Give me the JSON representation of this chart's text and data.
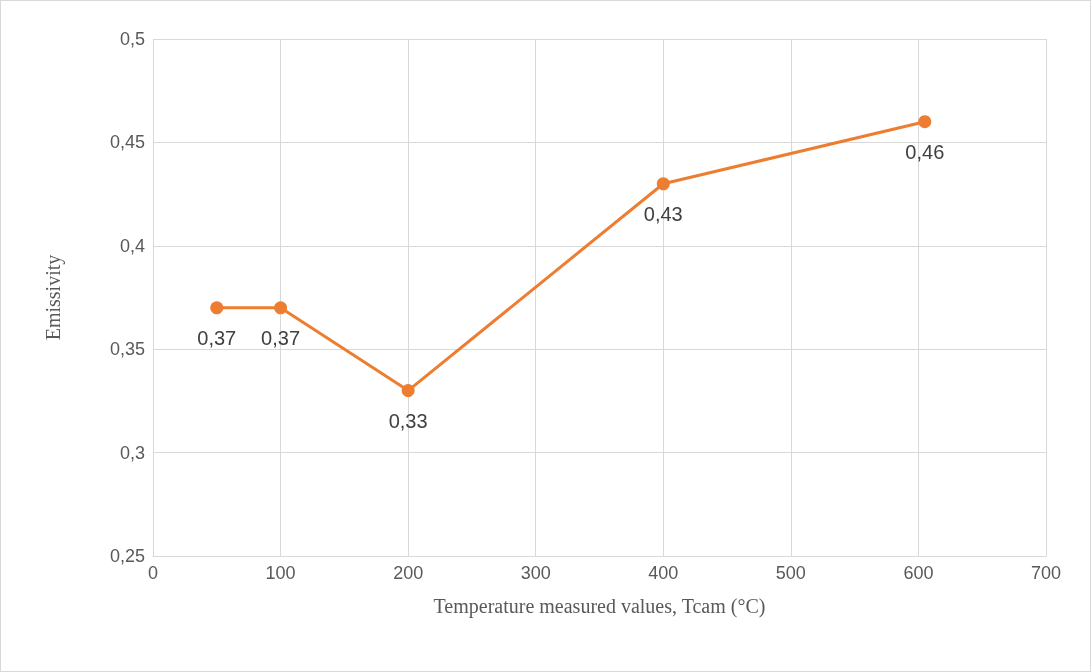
{
  "chart_data": {
    "type": "line",
    "xlabel": "Temperature measured values, Tcam (°C)",
    "ylabel": "Emissivity",
    "x": [
      50,
      100,
      200,
      400,
      605
    ],
    "series": [
      {
        "color": "#ed7d31",
        "values": [
          0.37,
          0.37,
          0.33,
          0.43,
          0.46
        ],
        "value_labels": [
          "0,37",
          "0,37",
          "0,33",
          "0,43",
          "0,46"
        ]
      }
    ],
    "xlim": [
      0,
      700
    ],
    "xticks": [
      0,
      100,
      200,
      300,
      400,
      500,
      600,
      700
    ],
    "ylim": [
      0.25,
      0.5
    ],
    "yticks": [
      {
        "value": 0.25,
        "label": "0,25"
      },
      {
        "value": 0.3,
        "label": "0,3"
      },
      {
        "value": 0.35,
        "label": "0,35"
      },
      {
        "value": 0.4,
        "label": "0,4"
      },
      {
        "value": 0.45,
        "label": "0,45"
      },
      {
        "value": 0.5,
        "label": "0,5"
      }
    ],
    "grid": true,
    "marker": "circle",
    "line_style": "solid"
  }
}
